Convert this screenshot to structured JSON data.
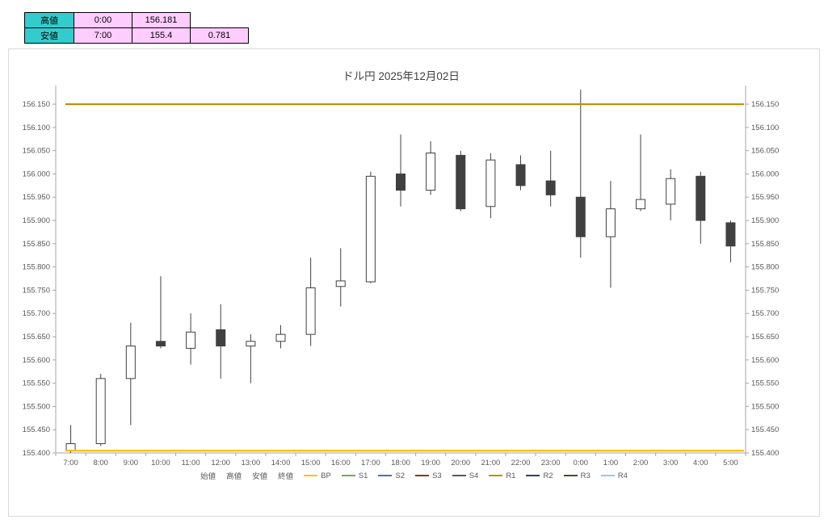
{
  "summary_table": {
    "label_bg": "#33CCCC",
    "value_bg": "#FFCCFF",
    "rows": [
      [
        "高値",
        "0:00",
        "156.181"
      ],
      [
        "安値",
        "7:00",
        "155.4",
        "0.781"
      ]
    ]
  },
  "chart_data": {
    "type": "candlestick",
    "title": "ドル円 2025年12月02日",
    "xlabel": "",
    "ylabel": "",
    "ylim": [
      155.4,
      156.19
    ],
    "yticks": {
      "start": 155.4,
      "end": 156.15,
      "step": 0.05,
      "decimals": 3
    },
    "grid": false,
    "legend_position": "bottom",
    "categories": [
      "7:00",
      "8:00",
      "9:00",
      "10:00",
      "11:00",
      "12:00",
      "13:00",
      "14:00",
      "15:00",
      "16:00",
      "17:00",
      "18:00",
      "19:00",
      "20:00",
      "21:00",
      "22:00",
      "23:00",
      "0:00",
      "1:00",
      "2:00",
      "3:00",
      "4:00",
      "5:00"
    ],
    "series_names": {
      "open": "始値",
      "high": "高値",
      "low": "安値",
      "close": "終値"
    },
    "candles": [
      {
        "time": "7:00",
        "open": 155.405,
        "high": 155.46,
        "low": 155.4,
        "close": 155.42
      },
      {
        "time": "8:00",
        "open": 155.42,
        "high": 155.57,
        "low": 155.415,
        "close": 155.56
      },
      {
        "time": "9:00",
        "open": 155.56,
        "high": 155.68,
        "low": 155.46,
        "close": 155.63
      },
      {
        "time": "10:00",
        "open": 155.64,
        "high": 155.78,
        "low": 155.625,
        "close": 155.63
      },
      {
        "time": "11:00",
        "open": 155.625,
        "high": 155.7,
        "low": 155.59,
        "close": 155.66
      },
      {
        "time": "12:00",
        "open": 155.665,
        "high": 155.72,
        "low": 155.56,
        "close": 155.63
      },
      {
        "time": "13:00",
        "open": 155.63,
        "high": 155.655,
        "low": 155.55,
        "close": 155.64
      },
      {
        "time": "14:00",
        "open": 155.64,
        "high": 155.675,
        "low": 155.625,
        "close": 155.655
      },
      {
        "time": "15:00",
        "open": 155.655,
        "high": 155.82,
        "low": 155.63,
        "close": 155.755
      },
      {
        "time": "16:00",
        "open": 155.758,
        "high": 155.84,
        "low": 155.715,
        "close": 155.77
      },
      {
        "time": "17:00",
        "open": 155.768,
        "high": 156.005,
        "low": 155.765,
        "close": 155.995
      },
      {
        "time": "18:00",
        "open": 156.0,
        "high": 156.085,
        "low": 155.93,
        "close": 155.965
      },
      {
        "time": "19:00",
        "open": 155.965,
        "high": 156.07,
        "low": 155.955,
        "close": 156.045
      },
      {
        "time": "20:00",
        "open": 156.04,
        "high": 156.05,
        "low": 155.92,
        "close": 155.925
      },
      {
        "time": "21:00",
        "open": 155.93,
        "high": 156.045,
        "low": 155.905,
        "close": 156.03
      },
      {
        "time": "22:00",
        "open": 156.02,
        "high": 156.04,
        "low": 155.965,
        "close": 155.975
      },
      {
        "time": "23:00",
        "open": 155.985,
        "high": 156.05,
        "low": 155.93,
        "close": 155.955
      },
      {
        "time": "0:00",
        "open": 155.95,
        "high": 156.181,
        "low": 155.82,
        "close": 155.865
      },
      {
        "time": "1:00",
        "open": 155.865,
        "high": 155.985,
        "low": 155.755,
        "close": 155.925
      },
      {
        "time": "2:00",
        "open": 155.925,
        "high": 156.085,
        "low": 155.92,
        "close": 155.945
      },
      {
        "time": "3:00",
        "open": 155.935,
        "high": 156.01,
        "low": 155.9,
        "close": 155.99
      },
      {
        "time": "4:00",
        "open": 155.995,
        "high": 156.005,
        "low": 155.85,
        "close": 155.9
      },
      {
        "time": "5:00",
        "open": 155.895,
        "high": 155.9,
        "low": 155.81,
        "close": 155.845
      }
    ],
    "hlines": [
      {
        "name": "R1",
        "value": 156.15,
        "color": "#BF8F00",
        "width": 2.2
      },
      {
        "name": "BP",
        "value": 155.405,
        "color": "#FFC000",
        "width": 2.2
      }
    ],
    "legend": [
      {
        "label": "始値",
        "color": null
      },
      {
        "label": "高値",
        "color": null
      },
      {
        "label": "安値",
        "color": null
      },
      {
        "label": "終値",
        "color": null
      },
      {
        "label": "BP",
        "color": "#FFC000"
      },
      {
        "label": "S1",
        "color": "#70AD47"
      },
      {
        "label": "S2",
        "color": "#4472C4"
      },
      {
        "label": "S3",
        "color": "#843C0C"
      },
      {
        "label": "S4",
        "color": "#595959"
      },
      {
        "label": "R1",
        "color": "#BF8F00"
      },
      {
        "label": "R2",
        "color": "#264478"
      },
      {
        "label": "R3",
        "color": "#375623"
      },
      {
        "label": "R4",
        "color": "#9DC3E6"
      }
    ],
    "colors": {
      "up_fill": "#FFFFFF",
      "down_fill": "#404040",
      "outline": "#404040",
      "axis": "#A6A6A6",
      "tick_text": "#595959"
    }
  }
}
